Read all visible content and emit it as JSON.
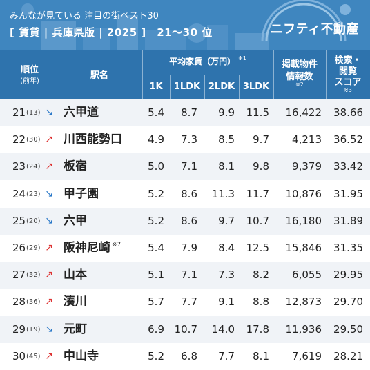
{
  "header": {
    "subtitle": "みんなが見ている 注目の街ベスト30",
    "title": "[ 賃貸 | 兵庫県版 | 2025 ]　21～30 位",
    "brand": "ニフティ不動産"
  },
  "table": {
    "headers": {
      "rank": "順位",
      "rank_sub": "(前年)",
      "station": "駅名",
      "rent": "平均家賃（万円）",
      "rent_note": "※1",
      "rent_cols": [
        "1K",
        "1LDK",
        "2LDK",
        "3LDK"
      ],
      "listings_l1": "掲載物件",
      "listings_l2": "情報数",
      "listings_note": "※2",
      "score_l1": "検索・",
      "score_l2": "閲覧",
      "score_l3": "スコア",
      "score_note": "※3"
    },
    "rows": [
      {
        "rank": "21",
        "prev": "(13)",
        "trend": "↘",
        "dir": "down",
        "station": "六甲道",
        "note": "",
        "k1": "5.4",
        "ldk1": "8.7",
        "ldk2": "9.9",
        "ldk3": "11.5",
        "listings": "16,422",
        "score": "38.66"
      },
      {
        "rank": "22",
        "prev": "(30)",
        "trend": "↗",
        "dir": "up",
        "station": "川西能勢口",
        "note": "",
        "k1": "4.9",
        "ldk1": "7.3",
        "ldk2": "8.5",
        "ldk3": "9.7",
        "listings": "4,213",
        "score": "36.52"
      },
      {
        "rank": "23",
        "prev": "(24)",
        "trend": "↗",
        "dir": "up",
        "station": "板宿",
        "note": "",
        "k1": "5.0",
        "ldk1": "7.1",
        "ldk2": "8.1",
        "ldk3": "9.8",
        "listings": "9,379",
        "score": "33.42"
      },
      {
        "rank": "24",
        "prev": "(23)",
        "trend": "↘",
        "dir": "down",
        "station": "甲子園",
        "note": "",
        "k1": "5.2",
        "ldk1": "8.6",
        "ldk2": "11.3",
        "ldk3": "11.7",
        "listings": "10,876",
        "score": "31.95"
      },
      {
        "rank": "25",
        "prev": "(20)",
        "trend": "↘",
        "dir": "down",
        "station": "六甲",
        "note": "",
        "k1": "5.2",
        "ldk1": "8.6",
        "ldk2": "9.7",
        "ldk3": "10.7",
        "listings": "16,180",
        "score": "31.89"
      },
      {
        "rank": "26",
        "prev": "(29)",
        "trend": "↗",
        "dir": "up",
        "station": "阪神尼崎",
        "note": "※7",
        "k1": "5.4",
        "ldk1": "7.9",
        "ldk2": "8.4",
        "ldk3": "12.5",
        "listings": "15,846",
        "score": "31.35"
      },
      {
        "rank": "27",
        "prev": "(32)",
        "trend": "↗",
        "dir": "up",
        "station": "山本",
        "note": "",
        "k1": "5.1",
        "ldk1": "7.1",
        "ldk2": "7.3",
        "ldk3": "8.2",
        "listings": "6,055",
        "score": "29.95"
      },
      {
        "rank": "28",
        "prev": "(36)",
        "trend": "↗",
        "dir": "up",
        "station": "湊川",
        "note": "",
        "k1": "5.7",
        "ldk1": "7.7",
        "ldk2": "9.1",
        "ldk3": "8.8",
        "listings": "12,873",
        "score": "29.70"
      },
      {
        "rank": "29",
        "prev": "(19)",
        "trend": "↘",
        "dir": "down",
        "station": "元町",
        "note": "",
        "k1": "6.9",
        "ldk1": "10.7",
        "ldk2": "14.0",
        "ldk3": "17.8",
        "listings": "11,936",
        "score": "29.50"
      },
      {
        "rank": "30",
        "prev": "(45)",
        "trend": "↗",
        "dir": "up",
        "station": "中山寺",
        "note": "",
        "k1": "5.2",
        "ldk1": "6.8",
        "ldk2": "7.7",
        "ldk3": "8.1",
        "listings": "7,619",
        "score": "28.21"
      }
    ]
  },
  "colors": {
    "header_bg": "#3f86bf",
    "thead_bg": "#2e73ad",
    "up": "#dd3333",
    "down": "#2a78c8"
  }
}
